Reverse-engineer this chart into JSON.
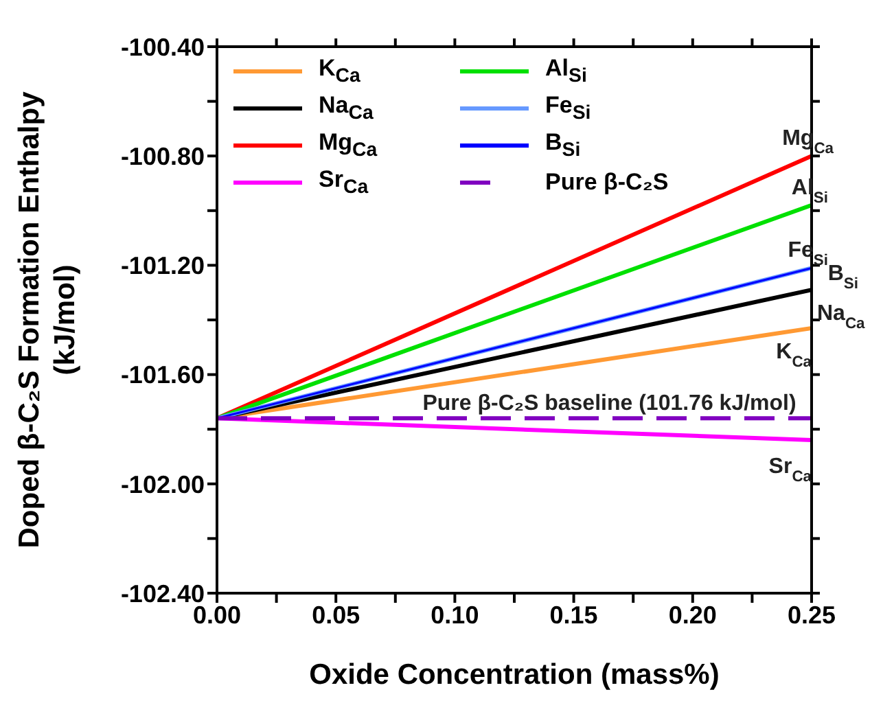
{
  "chart_data": {
    "type": "line",
    "xlabel": "Oxide Concentration (mass%)",
    "ylabel": "Doped β-C₂S Formation Enthalpy\n(kJ/mol)",
    "x": [
      0,
      0.25
    ],
    "series": [
      {
        "name": "K$_{Ca}$",
        "color": "#ff9933",
        "values": [
          -101.76,
          -101.43
        ]
      },
      {
        "name": "Na$_{Ca}$",
        "color": "#000000",
        "values": [
          -101.76,
          -101.29
        ]
      },
      {
        "name": "Mg$_{Ca}$",
        "color": "#ff0000",
        "values": [
          -101.76,
          -100.8
        ]
      },
      {
        "name": "Sr$_{Ca}$",
        "color": "#ff00ff",
        "values": [
          -101.76,
          -101.84
        ]
      },
      {
        "name": "Al$_{Si}$",
        "color": "#00e000",
        "values": [
          -101.76,
          -100.98
        ]
      },
      {
        "name": "Fe$_{Si}$",
        "color": "#6699ff",
        "values": [
          -101.76,
          -101.21
        ]
      },
      {
        "name": "B$_{Si}$",
        "color": "#0000ff",
        "values": [
          -101.76,
          -101.21
        ]
      },
      {
        "name": "Pure β-C₂S",
        "color": "#8000c0",
        "line_style": "dashed",
        "values": [
          -101.76,
          -101.76
        ]
      }
    ],
    "annotations": [
      "Mg$_{Ca}$",
      "Al$_{Si}$",
      "Fe$_{Si}$",
      "B$_{Si}$",
      "Na$_{Ca}$",
      "K$_{Ca}$",
      "Sr$_{Ca}$",
      "Pure β-C₂S baseline (101.76 kJ/mol)"
    ],
    "xlim": [
      0,
      0.25
    ],
    "xticks": [
      {
        "value": 0,
        "label": "0.00"
      },
      {
        "value": 0.025,
        "label": null
      },
      {
        "value": 0.05,
        "label": "0.05"
      },
      {
        "value": 0.075,
        "label": null
      },
      {
        "value": 0.1,
        "label": "0.10"
      },
      {
        "value": 0.125,
        "label": null
      },
      {
        "value": 0.15,
        "label": "0.15"
      },
      {
        "value": 0.175,
        "label": null
      },
      {
        "value": 0.2,
        "label": "0.20"
      },
      {
        "value": 0.225,
        "label": null
      },
      {
        "value": 0.25,
        "label": "0.25"
      }
    ],
    "ylim": [
      -102.4,
      -100.4
    ],
    "yticks": [
      {
        "value": -102.4,
        "label": "-102.40"
      },
      {
        "value": -102.2,
        "label": null
      },
      {
        "value": -102,
        "label": "-102.00"
      },
      {
        "value": -101.8,
        "label": null
      },
      {
        "value": -101.6,
        "label": "-101.60"
      },
      {
        "value": -101.4,
        "label": null
      },
      {
        "value": -101.2,
        "label": "-101.20"
      },
      {
        "value": -101,
        "label": null
      },
      {
        "value": -100.8,
        "label": "-100.80"
      },
      {
        "value": -100.6,
        "label": null
      },
      {
        "value": -100.4,
        "label": "-100.40"
      }
    ],
    "grid": false,
    "legend": "top left"
  }
}
